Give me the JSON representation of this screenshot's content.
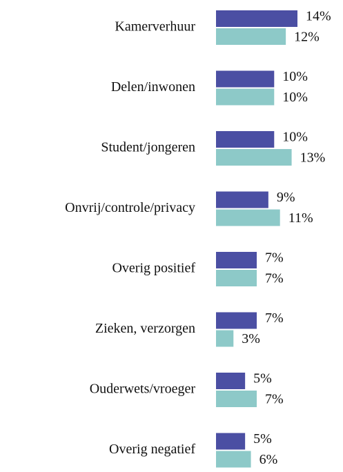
{
  "chart_data": {
    "type": "bar",
    "orientation": "horizontal",
    "categories": [
      "Kamerverhuur",
      "Delen/inwonen",
      "Student/jongeren",
      "Onvrij/controle/privacy",
      "Overig positief",
      "Zieken, verzorgen",
      "Ouderwets/vroeger",
      "Overig negatief"
    ],
    "series": [
      {
        "color": "#4b4fa3",
        "values": [
          14,
          10,
          10,
          9,
          7,
          7,
          5,
          5
        ],
        "value_labels": [
          "14%",
          "10%",
          "10%",
          "9%",
          "7%",
          "7%",
          "5%",
          "5%"
        ]
      },
      {
        "color": "#8dc9c8",
        "values": [
          12,
          10,
          13,
          11,
          7,
          3,
          7,
          6
        ],
        "value_labels": [
          "12%",
          "10%",
          "13%",
          "11%",
          "7%",
          "3%",
          "7%",
          "6%"
        ]
      }
    ],
    "xlim": [
      0,
      14
    ]
  }
}
